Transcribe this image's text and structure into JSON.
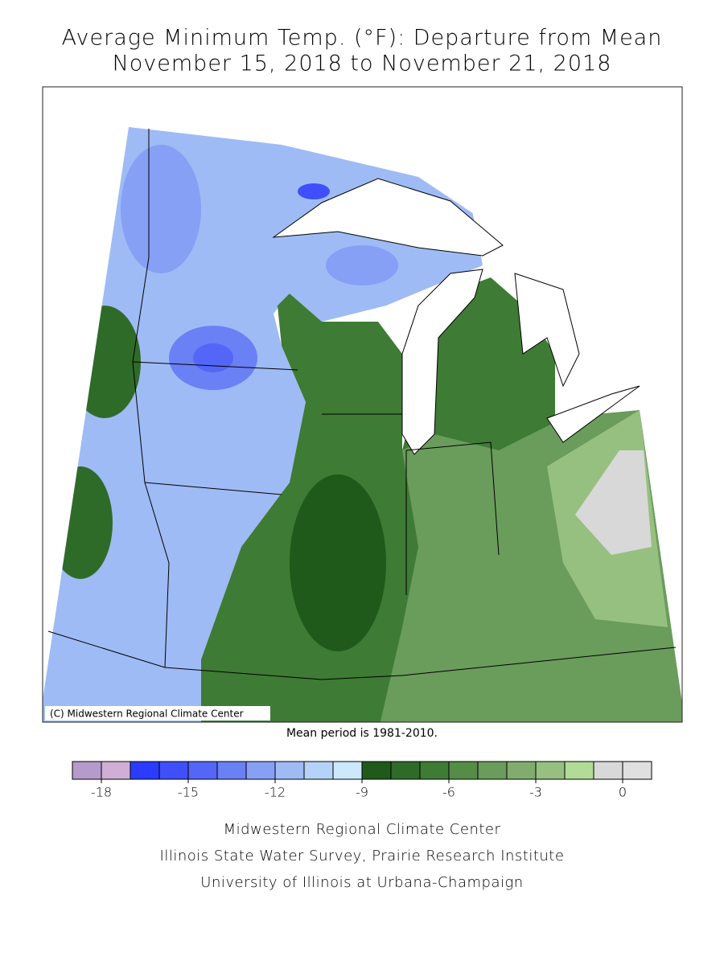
{
  "title": [
    "Average Minimum Temp. (°F): Departure from Mean",
    "November 15, 2018 to November 21, 2018"
  ],
  "map": {
    "copyright": "(C) Midwestern Regional Climate Center",
    "note": "Mean period is 1981-2010."
  },
  "legend": {
    "lim": [
      -19,
      1
    ],
    "ticks": [
      -18,
      -15,
      -12,
      -9,
      -6,
      -3,
      0
    ],
    "colors": [
      "#b59bcc",
      "#d0aed6",
      "#2a3cff",
      "#3f4ffb",
      "#5366f8",
      "#6a80f5",
      "#86a0f5",
      "#9fbbf5",
      "#b5d3f8",
      "#cbe9fb",
      "#1f5a1b",
      "#2f6b28",
      "#3e7b34",
      "#558c48",
      "#6a9c5c",
      "#80ad6e",
      "#96c080",
      "#b0dc98",
      "#d8d8d8",
      "#e0e0e0"
    ]
  },
  "footer": [
    "Midwestern Regional Climate Center",
    "Illinois State Water Survey, Prairie Research Institute",
    "University of Illinois at Urbana-Champaign"
  ]
}
